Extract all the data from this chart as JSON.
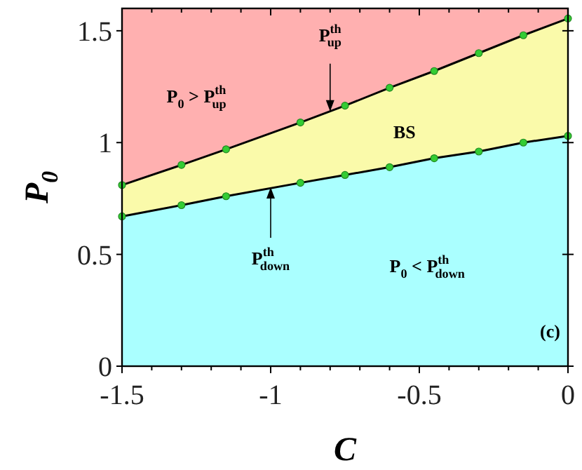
{
  "chart_data": {
    "type": "area",
    "xlabel": "C",
    "ylabel": "P$_{0}$",
    "x": [
      -1.5,
      -1.3,
      -1.15,
      -0.9,
      -0.75,
      -0.6,
      -0.45,
      -0.3,
      -0.15,
      0
    ],
    "series": [
      {
        "color": "#fafaaa",
        "values": [
          0.81,
          0.9,
          0.97,
          1.09,
          1.165,
          1.245,
          1.32,
          1.4,
          1.48,
          1.555
        ]
      },
      {
        "color": "#aaffff",
        "values": [
          0.67,
          0.72,
          0.76,
          0.82,
          0.855,
          0.89,
          0.93,
          0.96,
          1.0,
          1.03
        ]
      }
    ],
    "marker": "circle",
    "line_style": "solid",
    "bands": [
      {
        "axis": "y",
        "from": 0.8,
        "to": 1.6,
        "color": "#ffb0b0"
      }
    ],
    "xlim": [
      -1.5,
      0
    ],
    "ylim": [
      0,
      1.6
    ],
    "xticks": [
      -1.5,
      {
        "value": -1.4,
        "label": null
      },
      {
        "value": -1.3,
        "label": null
      },
      {
        "value": -1.2,
        "label": null
      },
      {
        "value": -1.1,
        "label": null
      },
      -1,
      {
        "value": -0.9,
        "label": null
      },
      {
        "value": -0.8,
        "label": null
      },
      {
        "value": -0.7,
        "label": null
      },
      {
        "value": -0.6,
        "label": null
      },
      -0.5,
      {
        "value": -0.4,
        "label": null
      },
      {
        "value": -0.3,
        "label": null
      },
      {
        "value": -0.2,
        "label": null
      },
      {
        "value": -0.1,
        "label": null
      },
      0
    ],
    "yticks": [
      0,
      0.5,
      1,
      1.5
    ],
    "annotations": [
      {
        "text": "P$^{th}$$_{up}$",
        "x": -0.8,
        "y": 1.14
      },
      {
        "text": "P$^{th}$$_{down}$",
        "x": -1.0,
        "y": 0.8
      },
      "P$_{0}$ > P$^{th}$$_{up}$",
      "BS",
      "P$_{0}$ < P$^{th}$$_{down}$",
      "(c)"
    ]
  }
}
